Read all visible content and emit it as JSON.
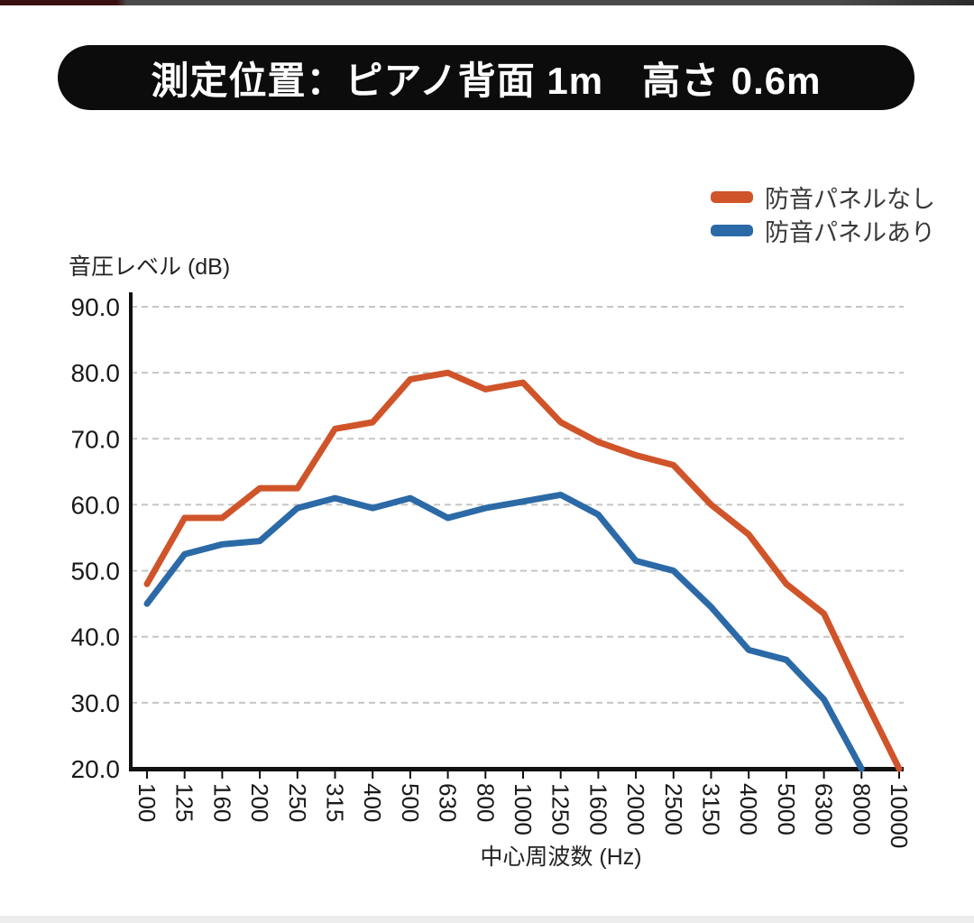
{
  "title": {
    "text": "測定位置：ピアノ背面 1m　高さ 0.6m"
  },
  "legend": [
    {
      "label": "防音パネルなし",
      "color": "#d0542a"
    },
    {
      "label": "防音パネルあり",
      "color": "#2b6aa6"
    }
  ],
  "axis_titles": {
    "y": "音圧レベル (dB)",
    "x": "中心周波数 (Hz)"
  },
  "chart_data": {
    "type": "line",
    "title": "測定位置：ピアノ背面 1m　高さ 0.6m",
    "xlabel": "中心周波数 (Hz)",
    "ylabel": "音圧レベル (dB)",
    "ylim": [
      20,
      90
    ],
    "ytick_labels": [
      "90.0",
      "80.0",
      "70.0",
      "60.0",
      "50.0",
      "40.0",
      "30.0",
      "20.0"
    ],
    "grid": "horizontal-dashed",
    "grid_color": "#c5c5c5",
    "axis_color": "#111111",
    "legend_position": "top-right",
    "categories": [
      "100",
      "125",
      "160",
      "200",
      "250",
      "315",
      "400",
      "500",
      "630",
      "800",
      "1000",
      "1250",
      "1600",
      "2000",
      "2500",
      "3150",
      "4000",
      "5000",
      "6300",
      "8000",
      "10000"
    ],
    "series": [
      {
        "name": "防音パネルなし",
        "color": "#d0542a",
        "values": [
          48.0,
          58.0,
          58.0,
          62.5,
          62.5,
          71.5,
          72.5,
          79.0,
          80.0,
          77.5,
          78.5,
          72.5,
          69.5,
          67.5,
          66.0,
          60.0,
          55.5,
          48.0,
          43.5,
          31.5,
          20.0
        ]
      },
      {
        "name": "防音パネルあり",
        "color": "#2b6aa6",
        "values": [
          45.0,
          52.5,
          54.0,
          54.5,
          59.5,
          61.0,
          59.5,
          61.0,
          58.0,
          59.5,
          60.5,
          61.5,
          58.5,
          51.5,
          50.0,
          44.5,
          38.0,
          36.5,
          30.5,
          20.0,
          null
        ]
      }
    ]
  }
}
